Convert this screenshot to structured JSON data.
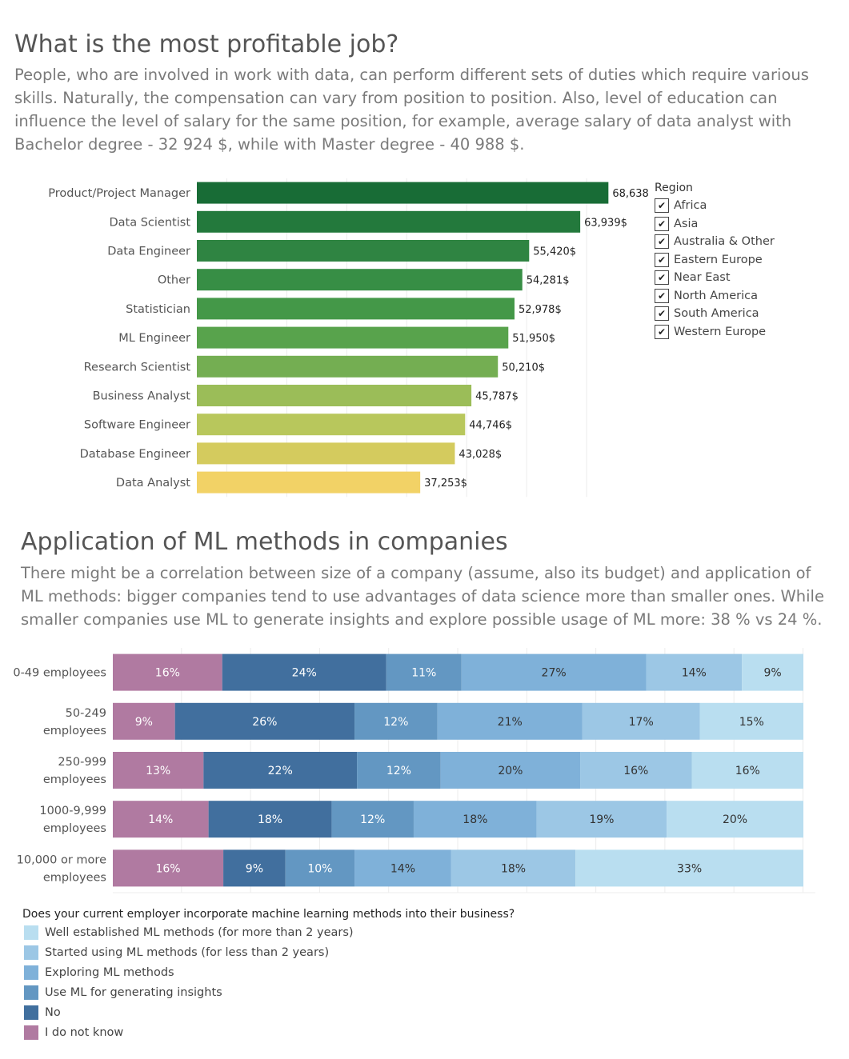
{
  "section1": {
    "title": "What is the most profitable job?",
    "description": "People, who are involved in work with data, can perform different sets of duties which require various skills. Naturally, the compensation can vary from position to position. Also, level of education can influence the level of salary for the same position, for example, average salary of data analyst with Bachelor degree - 32 924 $, while with Master degree - 40 988 $."
  },
  "region_legend": {
    "title": "Region",
    "items": [
      "Africa",
      "Asia",
      "Australia & Other",
      "Eastern Europe",
      "Near East",
      "North America",
      "South America",
      "Western Europe"
    ],
    "check_icon": "check-icon"
  },
  "section2": {
    "title": "Application of ML methods in companies",
    "description": "There might be a correlation between size of a company (assume, also its budget) and application of ML methods: bigger companies tend to use advantages of data science more than smaller ones. While smaller companies use ML to generate insights and explore possible usage of ML more: 38 % vs 24 %."
  },
  "ml_legend": {
    "title": "Does your current employer incorporate machine learning methods into their business?",
    "items": [
      {
        "label": "Well established ML methods (for more than 2 years)",
        "color": "#b9def0"
      },
      {
        "label": "Started using ML methods (for less than 2 years)",
        "color": "#9cc7e5"
      },
      {
        "label": "Exploring ML methods",
        "color": "#7fb1d9"
      },
      {
        "label": "Use ML for generating insights",
        "color": "#6397c2"
      },
      {
        "label": "No",
        "color": "#416f9e"
      },
      {
        "label": "I do not know",
        "color": "#b07aa1"
      }
    ]
  },
  "chart_data": [
    {
      "type": "bar",
      "orientation": "horizontal",
      "categories": [
        "Product/Project Manager",
        "Data Scientist",
        "Data Engineer",
        "Other",
        "Statistician",
        "ML Engineer",
        "Research Scientist",
        "Business Analyst",
        "Software Engineer",
        "Database Engineer",
        "Data Analyst"
      ],
      "values": [
        68638,
        63939,
        55420,
        54281,
        52978,
        51950,
        50210,
        45787,
        44746,
        43028,
        37253
      ],
      "value_labels": [
        "68,638$",
        "63,939$",
        "55,420$",
        "54,281$",
        "52,978$",
        "51,950$",
        "50,210$",
        "45,787$",
        "44,746$",
        "43,028$",
        "37,253$"
      ],
      "colors": [
        "#186c36",
        "#23793c",
        "#2f8442",
        "#378e45",
        "#449848",
        "#58a34c",
        "#74ae52",
        "#9bbd58",
        "#b8c75c",
        "#d4cb5e",
        "#f2d266"
      ],
      "xlim": [
        0,
        75000
      ],
      "grid": true
    },
    {
      "type": "bar",
      "orientation": "horizontal",
      "stacked": true,
      "normalized": true,
      "categories": [
        "0-49 employees",
        "50-249 employees",
        "250-999 employees",
        "1000-9,999 employees",
        "10,000 or more employees"
      ],
      "category_lines": [
        [
          "0-49 employees"
        ],
        [
          "50-249",
          "employees"
        ],
        [
          "250-999",
          "employees"
        ],
        [
          "1000-9,999",
          "employees"
        ],
        [
          "10,000 or more",
          "employees"
        ]
      ],
      "series": [
        {
          "name": "I do not know",
          "color": "#b07aa1",
          "values": [
            16,
            9,
            13,
            14,
            16
          ]
        },
        {
          "name": "No",
          "color": "#416f9e",
          "values": [
            24,
            26,
            22,
            18,
            9
          ]
        },
        {
          "name": "Use ML for generating insights",
          "color": "#6397c2",
          "values": [
            11,
            12,
            12,
            12,
            10
          ]
        },
        {
          "name": "Exploring ML methods",
          "color": "#7fb1d9",
          "values": [
            27,
            21,
            20,
            18,
            14
          ]
        },
        {
          "name": "Started using ML methods (for less than 2 years)",
          "color": "#9cc7e5",
          "values": [
            14,
            17,
            16,
            19,
            18
          ]
        },
        {
          "name": "Well established ML methods (for more than 2 years)",
          "color": "#b9def0",
          "values": [
            9,
            15,
            16,
            20,
            33
          ]
        }
      ],
      "grid": true
    }
  ]
}
